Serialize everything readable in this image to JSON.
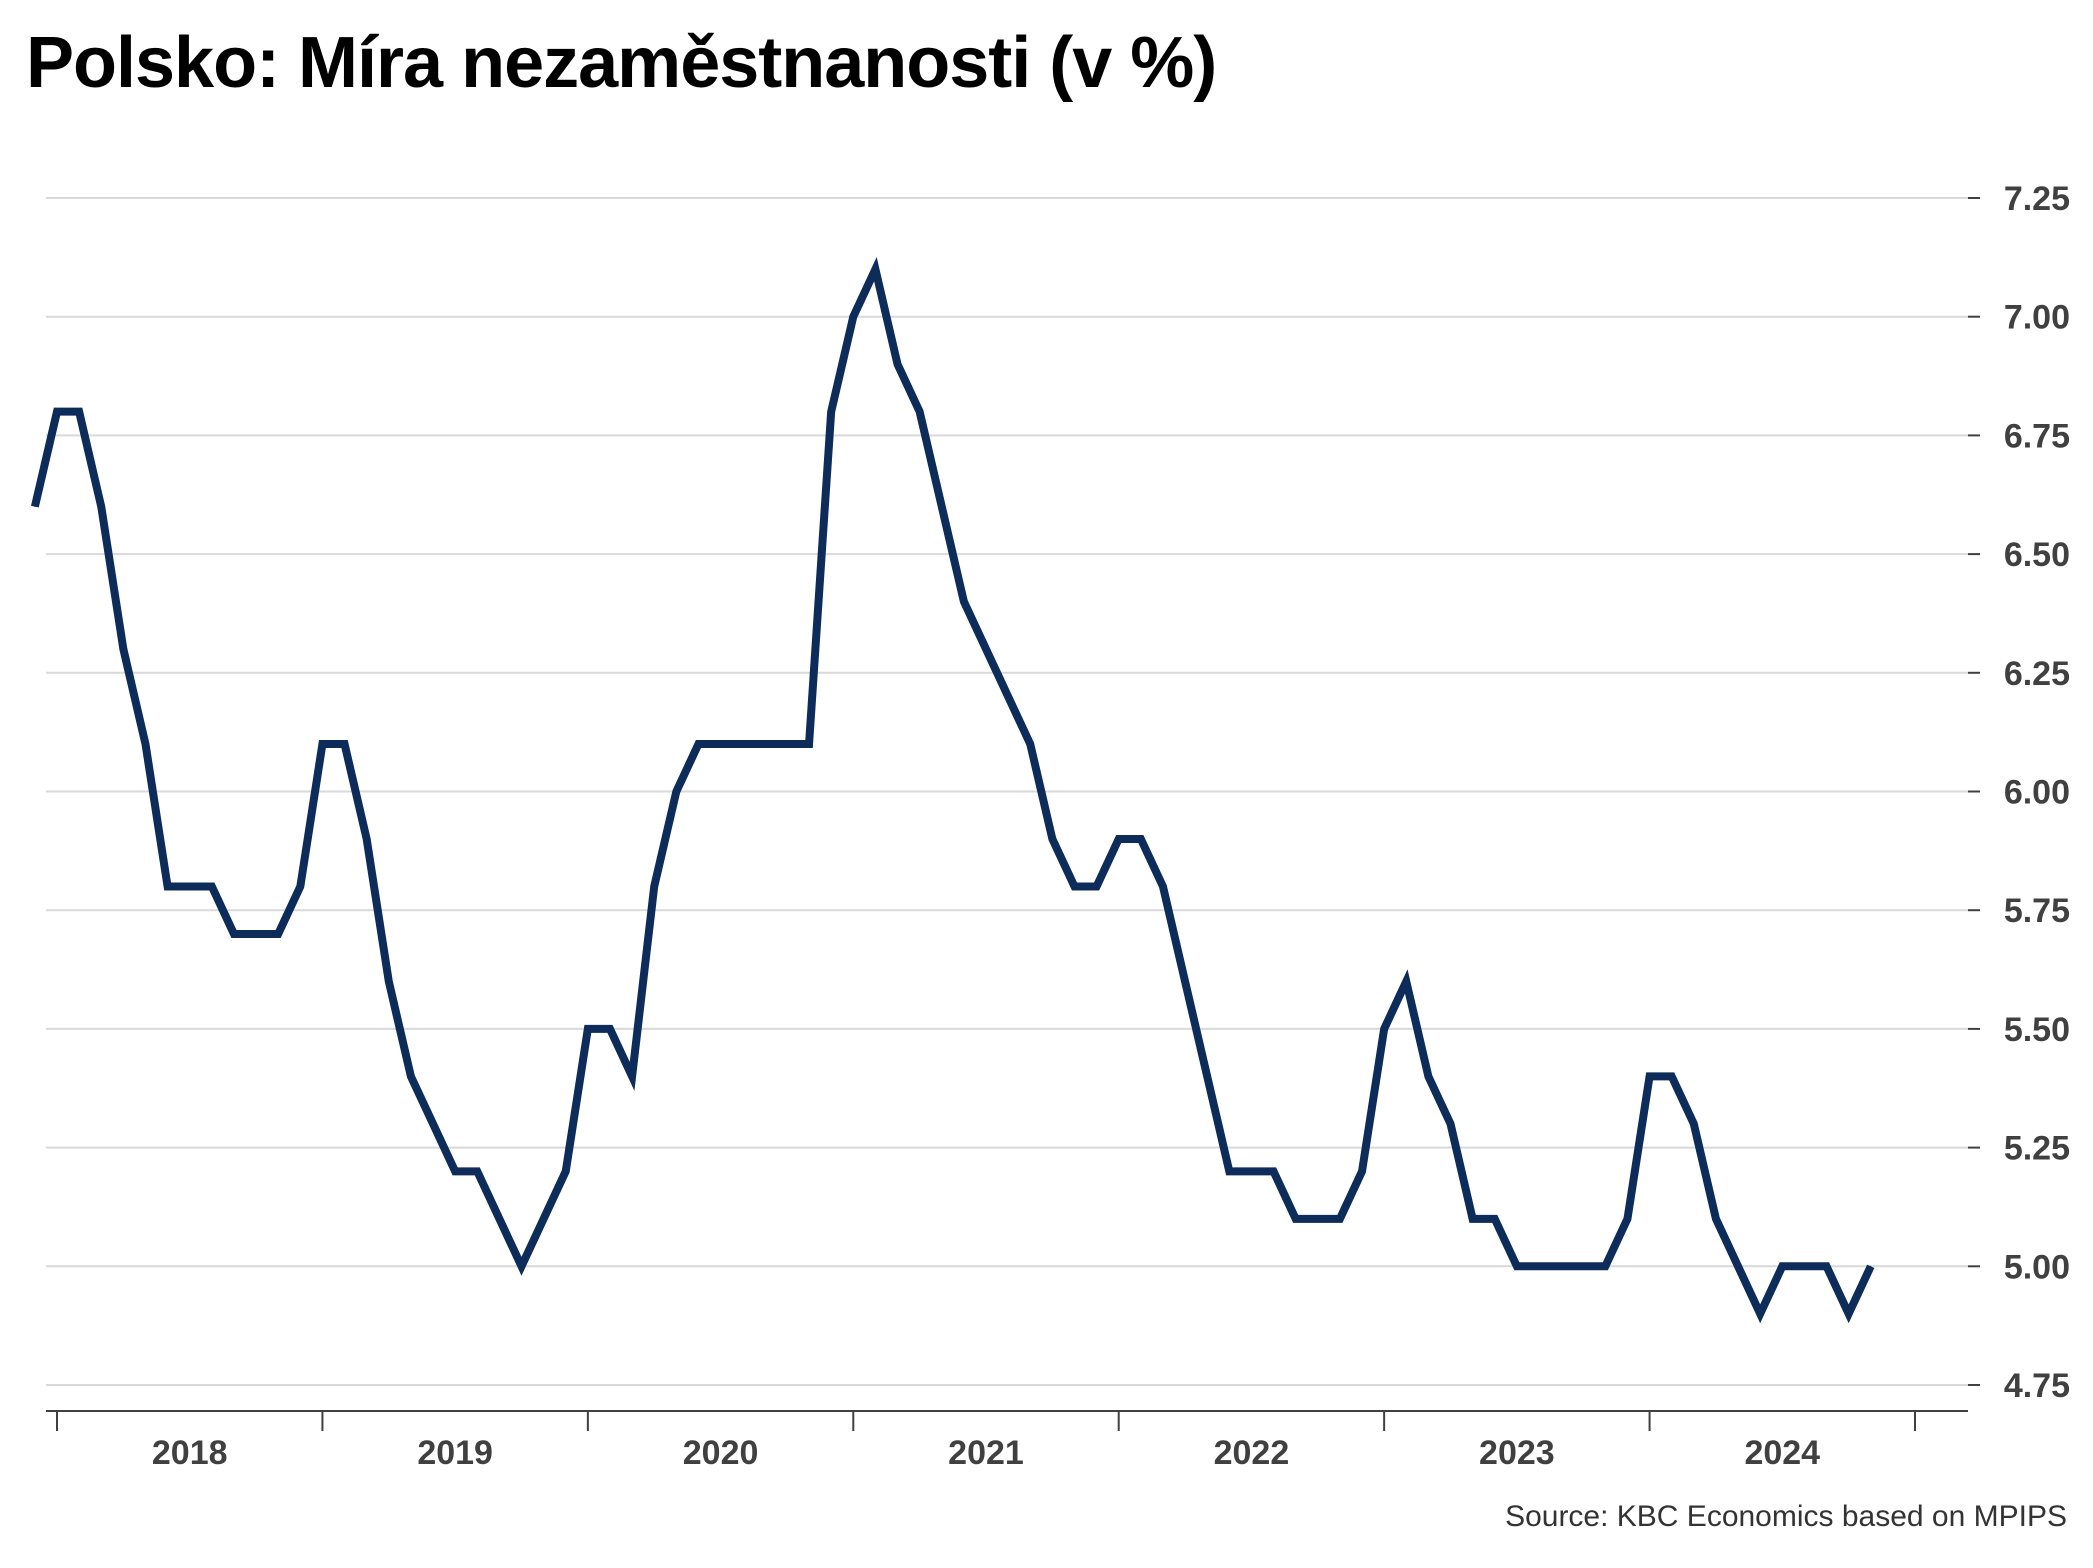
{
  "title": "Polsko: Míra nezaměstnanosti (v %)",
  "source": "Source: KBC Economics based on MPIPS",
  "colors": {
    "line": "#0d2c5a",
    "grid": "#d9d9d9",
    "axis": "#404040",
    "text": "#404040"
  },
  "chart_data": {
    "type": "line",
    "title": "Polsko: Míra nezaměstnanosti (v %)",
    "xlabel": "",
    "ylabel": "",
    "y_axis_position": "right",
    "ylim": [
      4.75,
      7.25
    ],
    "yticks": [
      "7.25",
      "7.00",
      "6.75",
      "6.50",
      "6.25",
      "6.00",
      "5.75",
      "5.50",
      "5.25",
      "5.00",
      "4.75"
    ],
    "xticks": [
      "2018",
      "2019",
      "2020",
      "2021",
      "2022",
      "2023",
      "2024"
    ],
    "grid": true,
    "legend": "none",
    "start": "2017-12",
    "frequency": "monthly",
    "series": [
      {
        "values": [
          6.6,
          6.8,
          6.8,
          6.6,
          6.3,
          6.1,
          5.8,
          5.8,
          5.8,
          5.7,
          5.7,
          5.7,
          5.8,
          6.1,
          6.1,
          5.9,
          5.6,
          5.4,
          5.3,
          5.2,
          5.2,
          5.1,
          5.0,
          5.1,
          5.2,
          5.5,
          5.5,
          5.4,
          5.8,
          6.0,
          6.1,
          6.1,
          6.1,
          6.1,
          6.1,
          6.1,
          6.8,
          7.0,
          7.1,
          6.9,
          6.8,
          6.6,
          6.4,
          6.3,
          6.2,
          6.1,
          5.9,
          5.8,
          5.8,
          5.9,
          5.9,
          5.8,
          5.6,
          5.4,
          5.2,
          5.2,
          5.2,
          5.1,
          5.1,
          5.1,
          5.2,
          5.5,
          5.6,
          5.4,
          5.3,
          5.1,
          5.1,
          5.0,
          5.0,
          5.0,
          5.0,
          5.0,
          5.1,
          5.4,
          5.4,
          5.3,
          5.1,
          5.0,
          4.9,
          5.0,
          5.0,
          5.0,
          4.9,
          5.0
        ]
      }
    ]
  }
}
